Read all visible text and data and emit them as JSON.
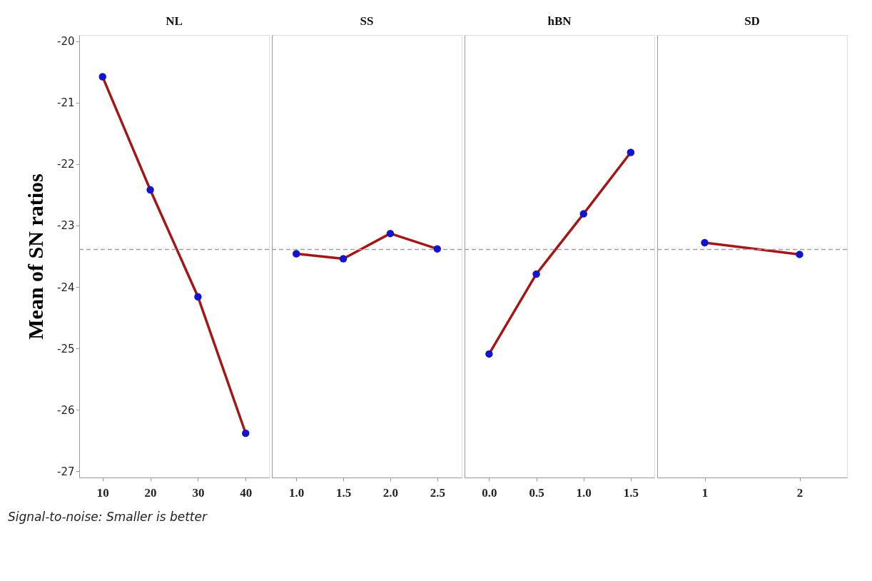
{
  "chart_data": [
    {
      "type": "line",
      "title": "NL",
      "ylabel": "Mean of SN ratios",
      "x": [
        10,
        20,
        30,
        40
      ],
      "xlim": [
        5.1,
        44.9
      ],
      "xticks": [
        10,
        20,
        30,
        40
      ],
      "ylim": [
        -27.1,
        -19.9
      ],
      "yticks": [
        -27,
        -26,
        -25,
        -24,
        -23,
        -22,
        -21,
        -20
      ],
      "grid": false,
      "marker": "circle",
      "line_style": "solid",
      "series": [
        {
          "color": "#a01818",
          "values": [
            -20.58,
            -22.42,
            -24.16,
            -26.38
          ]
        }
      ],
      "ref_lines": [
        {
          "axis": "y",
          "value": -23.39,
          "color": "#a0a0a0",
          "line_style": "dashed"
        }
      ],
      "annotations": [
        "Signal-to-noise: Smaller is better"
      ]
    },
    {
      "type": "line",
      "title": "SS",
      "x": [
        1.0,
        1.5,
        2.0,
        2.5
      ],
      "xlim": [
        0.74,
        2.76
      ],
      "xticks": [
        {
          "value": 1.0,
          "label": "1.0"
        },
        {
          "value": 1.5,
          "label": "1.5"
        },
        {
          "value": 2.0,
          "label": "2.0"
        },
        {
          "value": 2.5,
          "label": "2.5"
        }
      ],
      "ylim": [
        -27.1,
        -19.9
      ],
      "tick_labels": "x",
      "grid": false,
      "marker": "circle",
      "line_style": "solid",
      "series": [
        {
          "color": "#a01818",
          "values": [
            -23.46,
            -23.54,
            -23.13,
            -23.38
          ]
        }
      ],
      "ref_lines": [
        {
          "axis": "y",
          "value": -23.39,
          "color": "#a0a0a0",
          "line_style": "dashed"
        }
      ]
    },
    {
      "type": "line",
      "title": "hBN",
      "x": [
        0.0,
        0.5,
        1.0,
        1.5
      ],
      "xlim": [
        -0.26,
        1.75
      ],
      "xticks": [
        {
          "value": 0.0,
          "label": "0.0"
        },
        {
          "value": 0.5,
          "label": "0.5"
        },
        {
          "value": 1.0,
          "label": "1.0"
        },
        {
          "value": 1.5,
          "label": "1.5"
        }
      ],
      "ylim": [
        -27.1,
        -19.9
      ],
      "tick_labels": "x",
      "grid": false,
      "marker": "circle",
      "line_style": "solid",
      "series": [
        {
          "color": "#a01818",
          "values": [
            -25.09,
            -23.79,
            -22.81,
            -21.81
          ]
        }
      ],
      "ref_lines": [
        {
          "axis": "y",
          "value": -23.39,
          "color": "#a0a0a0",
          "line_style": "dashed"
        }
      ]
    },
    {
      "type": "line",
      "title": "SD",
      "x": [
        1,
        2
      ],
      "xlim": [
        0.5,
        2.5
      ],
      "xticks": [
        1,
        2
      ],
      "ylim": [
        -27.1,
        -19.9
      ],
      "tick_labels": "x",
      "grid": false,
      "marker": "circle",
      "line_style": "solid",
      "series": [
        {
          "color": "#a01818",
          "values": [
            -23.28,
            -23.47
          ]
        }
      ],
      "ref_lines": [
        {
          "axis": "y",
          "value": -23.39,
          "color": "#a0a0a0",
          "line_style": "dashed"
        }
      ]
    }
  ]
}
